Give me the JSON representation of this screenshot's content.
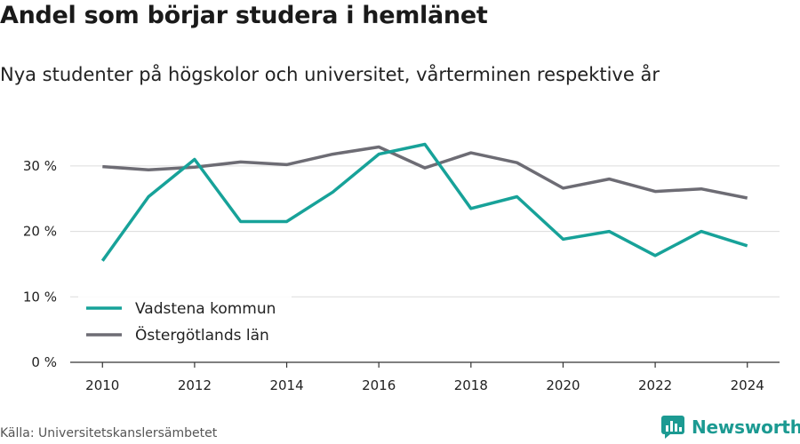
{
  "title": "Andel som börjar studera i hemlänet",
  "subtitle": "Nya studenter på högskolor och universitet, vårterminen respektive år",
  "source": "Källa: Universitetskanslersämbetet",
  "brand": {
    "name": "Newsworthy",
    "icon": "bar-chart-logo-icon",
    "color": "#1c9a92"
  },
  "chart_data": {
    "type": "line",
    "x": [
      2010,
      2011,
      2012,
      2013,
      2014,
      2015,
      2016,
      2017,
      2018,
      2019,
      2020,
      2021,
      2022,
      2023,
      2024
    ],
    "xticks": [
      "2010",
      "2012",
      "2014",
      "2016",
      "2018",
      "2020",
      "2022",
      "2024"
    ],
    "yticks": [
      "0 %",
      "10 %",
      "20 %",
      "30 %"
    ],
    "ylim": [
      0,
      35
    ],
    "xlim": [
      2009.3,
      2024.7
    ],
    "grid": true,
    "legend_position": "bottom-left",
    "series": [
      {
        "name": "Vadstena kommun",
        "color": "#17a299",
        "values": [
          15.5,
          25.3,
          31.0,
          21.5,
          21.5,
          26.0,
          31.8,
          33.3,
          23.5,
          25.3,
          18.8,
          20.0,
          16.3,
          20.0,
          17.8
        ]
      },
      {
        "name": "Östergötlands län",
        "color": "#6d6c74",
        "values": [
          29.9,
          29.4,
          29.8,
          30.6,
          30.2,
          31.8,
          32.9,
          29.7,
          32.0,
          30.5,
          26.6,
          28.0,
          26.1,
          26.5,
          25.1
        ]
      }
    ]
  }
}
